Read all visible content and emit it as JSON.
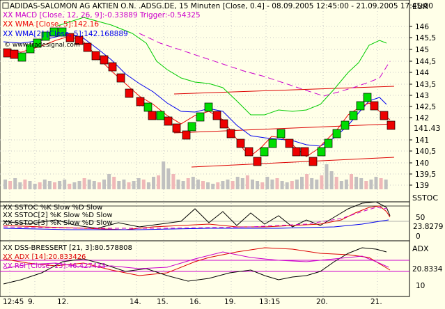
{
  "header": {
    "title": "ADIDAS-SALOMON AG AKTIEN O.N. .ADSG.DE, 15 Minuten [Close, 0.4] - 08.09.2005 12:45:00 - 21.09.2005 17:45:00",
    "currency": "EUR",
    "macd_label": "XX MACD [Close, 12, 26, 9]:-0.33889 Trigger:-0.54325",
    "wma5_label": "XX WMA [Close, 5]:142.16",
    "wma2_label": "XX WMA[2] [Close, 5]:142.168889",
    "watermark": "© www.tradesignal.com"
  },
  "main_chart": {
    "y_ticks": [
      "146",
      "145,5",
      "145",
      "144,5",
      "144",
      "143,5",
      "143",
      "142,5",
      "142",
      "141.43",
      "141",
      "140,5",
      "140",
      "139,5",
      "139"
    ],
    "last_price": "141.43",
    "colors": {
      "up": "#00cc00",
      "down": "#ff0000",
      "grid": "#bdbdbd",
      "axis": "#000000",
      "bg": "#ffffe8"
    }
  },
  "sstoc_panel": {
    "label1": "XX SSTOC %K Slow %D Slow",
    "label2": "XX SSTOC[2] %K Slow %D Slow",
    "label3": "XX SSTOC[3] %K Slow %D Slow",
    "axis_title": "SSTOC",
    "ticks": [
      "50",
      "23.8279",
      "0"
    ]
  },
  "dss_panel": {
    "label1": "XX DSS-BRESSERT [21, 3]:80.578808",
    "label2": "XX ADX [14]:20.833426",
    "label3": "XX RSI [Close, 13]:46.427433",
    "axis_title": "ADX",
    "ticks": [
      "20.8334",
      "10"
    ]
  },
  "x_axis": {
    "labels": [
      "12:45",
      "9.",
      "12.",
      "14.",
      "15.",
      "16.",
      "19.",
      "13:15",
      "20.",
      "21."
    ]
  }
}
